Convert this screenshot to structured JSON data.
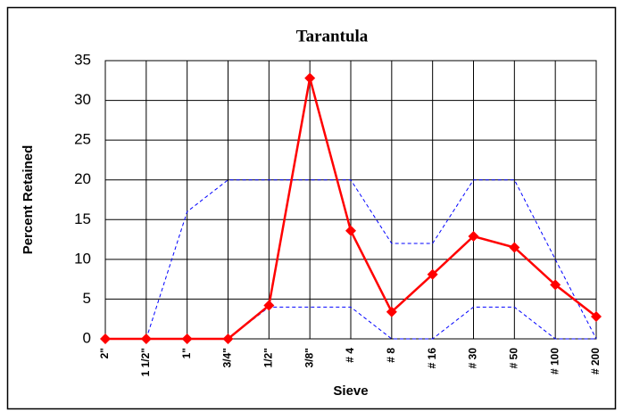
{
  "chart_data": {
    "type": "line",
    "title": "Tarantula",
    "x_label": "Sieve",
    "y_label": "Percent Retained",
    "categories": [
      "2\"",
      "1 1/2\"",
      "1\"",
      "3/4\"",
      "1/2\"",
      "3/8\"",
      "# 4",
      "# 8",
      "# 16",
      "# 30",
      "# 50",
      "# 100",
      "# 200"
    ],
    "series": [
      {
        "color": "#0000ff",
        "style": "dashed",
        "marker": "none",
        "values": [
          null,
          0,
          16,
          20,
          20,
          20,
          20,
          12,
          12,
          20,
          20,
          10,
          0
        ]
      },
      {
        "color": "#0000ff",
        "style": "dashed",
        "marker": "none",
        "values": [
          null,
          null,
          null,
          0,
          4,
          4,
          4,
          0,
          0,
          4,
          4,
          0,
          0
        ]
      },
      {
        "color": "#ff0000",
        "style": "solid",
        "marker": "diamond",
        "values": [
          0,
          0,
          0,
          0,
          4.2,
          32.8,
          13.6,
          3.4,
          8.1,
          12.9,
          11.5,
          6.8,
          2.8
        ]
      }
    ],
    "ylim": [
      0,
      35
    ],
    "yticks": [
      0,
      5,
      10,
      15,
      20,
      25,
      30,
      35
    ],
    "grid": true
  }
}
